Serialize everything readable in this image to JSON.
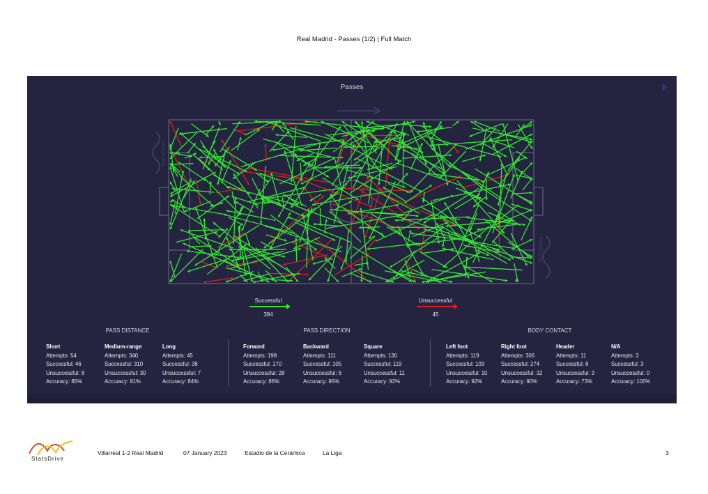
{
  "header": {
    "title": "Real Madrid - Passes (1/2) | Full Match"
  },
  "panel": {
    "title": "Passes",
    "watermark": "StatsDrive",
    "colors": {
      "background": "#242440",
      "successful": "#33e833",
      "unsuccessful": "#e01e1e",
      "pitch_lines": "#6e6e8a"
    }
  },
  "legend": {
    "successful": {
      "label": "Successful",
      "count": "394"
    },
    "unsuccessful": {
      "label": "Unsuccessful",
      "count": "45"
    }
  },
  "sections": {
    "pass_distance": {
      "title": "PASS DISTANCE",
      "columns": [
        {
          "name": "Short",
          "attempts": "Attempts: 54",
          "successful": "Successful: 46",
          "unsuccessful": "Unsuccessful: 8",
          "accuracy": "Accuracy: 85%"
        },
        {
          "name": "Medium-range",
          "attempts": "Attempts: 340",
          "successful": "Successful: 310",
          "unsuccessful": "Unsuccessful: 30",
          "accuracy": "Accuracy: 91%"
        },
        {
          "name": "Long",
          "attempts": "Attempts: 45",
          "successful": "Successful: 38",
          "unsuccessful": "Unsuccessful: 7",
          "accuracy": "Accuracy: 84%"
        }
      ]
    },
    "pass_direction": {
      "title": "PASS DIRECTION",
      "columns": [
        {
          "name": "Forward",
          "attempts": "Attempts: 198",
          "successful": "Successful: 170",
          "unsuccessful": "Unsuccessful: 28",
          "accuracy": "Accuracy: 86%"
        },
        {
          "name": "Backward",
          "attempts": "Attempts: 111",
          "successful": "Successful: 105",
          "unsuccessful": "Unsuccessful: 6",
          "accuracy": "Accuracy: 95%"
        },
        {
          "name": "Square",
          "attempts": "Attempts: 130",
          "successful": "Successful: 119",
          "unsuccessful": "Unsuccessful: 11",
          "accuracy": "Accuracy: 92%"
        }
      ]
    },
    "body_contact": {
      "title": "BODY CONTACT",
      "columns": [
        {
          "name": "Left foot",
          "attempts": "Attempts: 119",
          "successful": "Successful: 109",
          "unsuccessful": "Unsuccessful: 10",
          "accuracy": "Accuracy: 92%"
        },
        {
          "name": "Right foot",
          "attempts": "Attempts: 306",
          "successful": "Successful: 274",
          "unsuccessful": "Unsuccessful: 32",
          "accuracy": "Accuracy: 90%"
        },
        {
          "name": "Header",
          "attempts": "Attempts: 11",
          "successful": "Successful: 8",
          "unsuccessful": "Unsuccessful: 3",
          "accuracy": "Accuracy: 73%"
        },
        {
          "name": "N/A",
          "attempts": "Attempts: 3",
          "successful": "Successful: 3",
          "unsuccessful": "Unsuccessful: 0",
          "accuracy": "Accuracy: 100%"
        }
      ]
    }
  },
  "footer": {
    "brand": "StatsDrive",
    "match": "Villarreal 1-2 Real Madrid",
    "date": "07 January 2023",
    "stadium": "Estadio de la Cerámica",
    "competition": "La Liga",
    "page_number": "3"
  }
}
